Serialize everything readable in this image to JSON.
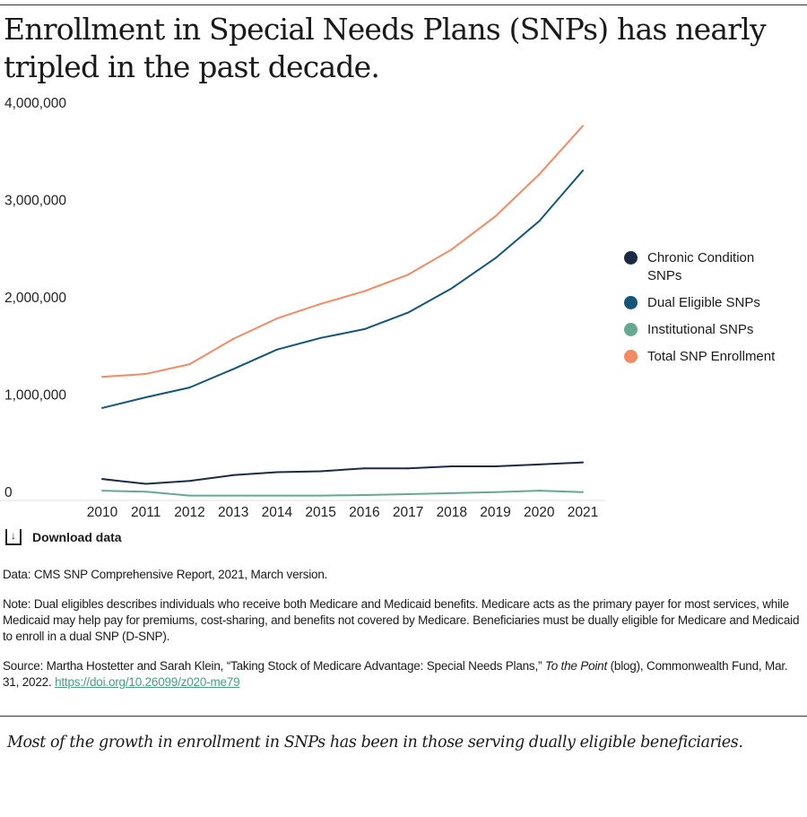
{
  "title": "Enrollment in Special Needs Plans (SNPs) has nearly tripled in the past decade.",
  "chart_data": {
    "type": "line",
    "title": "Enrollment in Special Needs Plans (SNPs) has nearly tripled in the past decade.",
    "x": [
      "2010",
      "2011",
      "2012",
      "2013",
      "2014",
      "2015",
      "2016",
      "2017",
      "2018",
      "2019",
      "2020",
      "2021"
    ],
    "ylim": [
      0,
      4000000
    ],
    "yticks": [
      0,
      1000000,
      2000000,
      3000000,
      4000000
    ],
    "ytick_labels": [
      "0",
      "1,000,000",
      "2,000,000",
      "3,000,000",
      "4,000,000"
    ],
    "grid": false,
    "legend_position": "right",
    "series": [
      {
        "name": "Chronic Condition SNPs",
        "color": "#1b2a45",
        "values": [
          220000,
          170000,
          200000,
          260000,
          290000,
          300000,
          330000,
          330000,
          350000,
          350000,
          370000,
          390000
        ]
      },
      {
        "name": "Dual Eligible SNPs",
        "color": "#14557a",
        "values": [
          950000,
          1060000,
          1160000,
          1350000,
          1550000,
          1670000,
          1760000,
          1930000,
          2180000,
          2490000,
          2870000,
          3390000
        ]
      },
      {
        "name": "Institutional SNPs",
        "color": "#67a893",
        "values": [
          100000,
          90000,
          50000,
          50000,
          50000,
          50000,
          55000,
          65000,
          75000,
          85000,
          100000,
          85000
        ]
      },
      {
        "name": "Total SNP Enrollment",
        "color": "#f28a64",
        "values": [
          1270000,
          1300000,
          1400000,
          1660000,
          1870000,
          2020000,
          2150000,
          2320000,
          2580000,
          2920000,
          3350000,
          3850000
        ]
      }
    ]
  },
  "download_label": "Download data",
  "download_icon": "download-icon",
  "data_note": "Data: CMS SNP Comprehensive Report, 2021, March version.",
  "note": "Note: Dual eligibles describes individuals who receive both Medicare and Medicaid benefits. Medicare acts as the primary payer for most services, while Medicaid may help pay for premiums, cost-sharing, and benefits not covered by Medicare. Beneficiaries must be dually eligible for Medicare and Medicaid to enroll in a dual SNP (D-SNP).",
  "source": {
    "prefix": "Source: Martha Hostetter and Sarah Klein, “Taking Stock of Medicare Advantage: Special Needs Plans,” ",
    "italic": "To the Point",
    "suffix": " (blog), Commonwealth Fund, Mar. 31, 2022. ",
    "link": "https://doi.org/10.26099/z020-me79"
  },
  "caption": "Most of the growth in enrollment in SNPs has been in those serving dually eligible beneficiaries."
}
